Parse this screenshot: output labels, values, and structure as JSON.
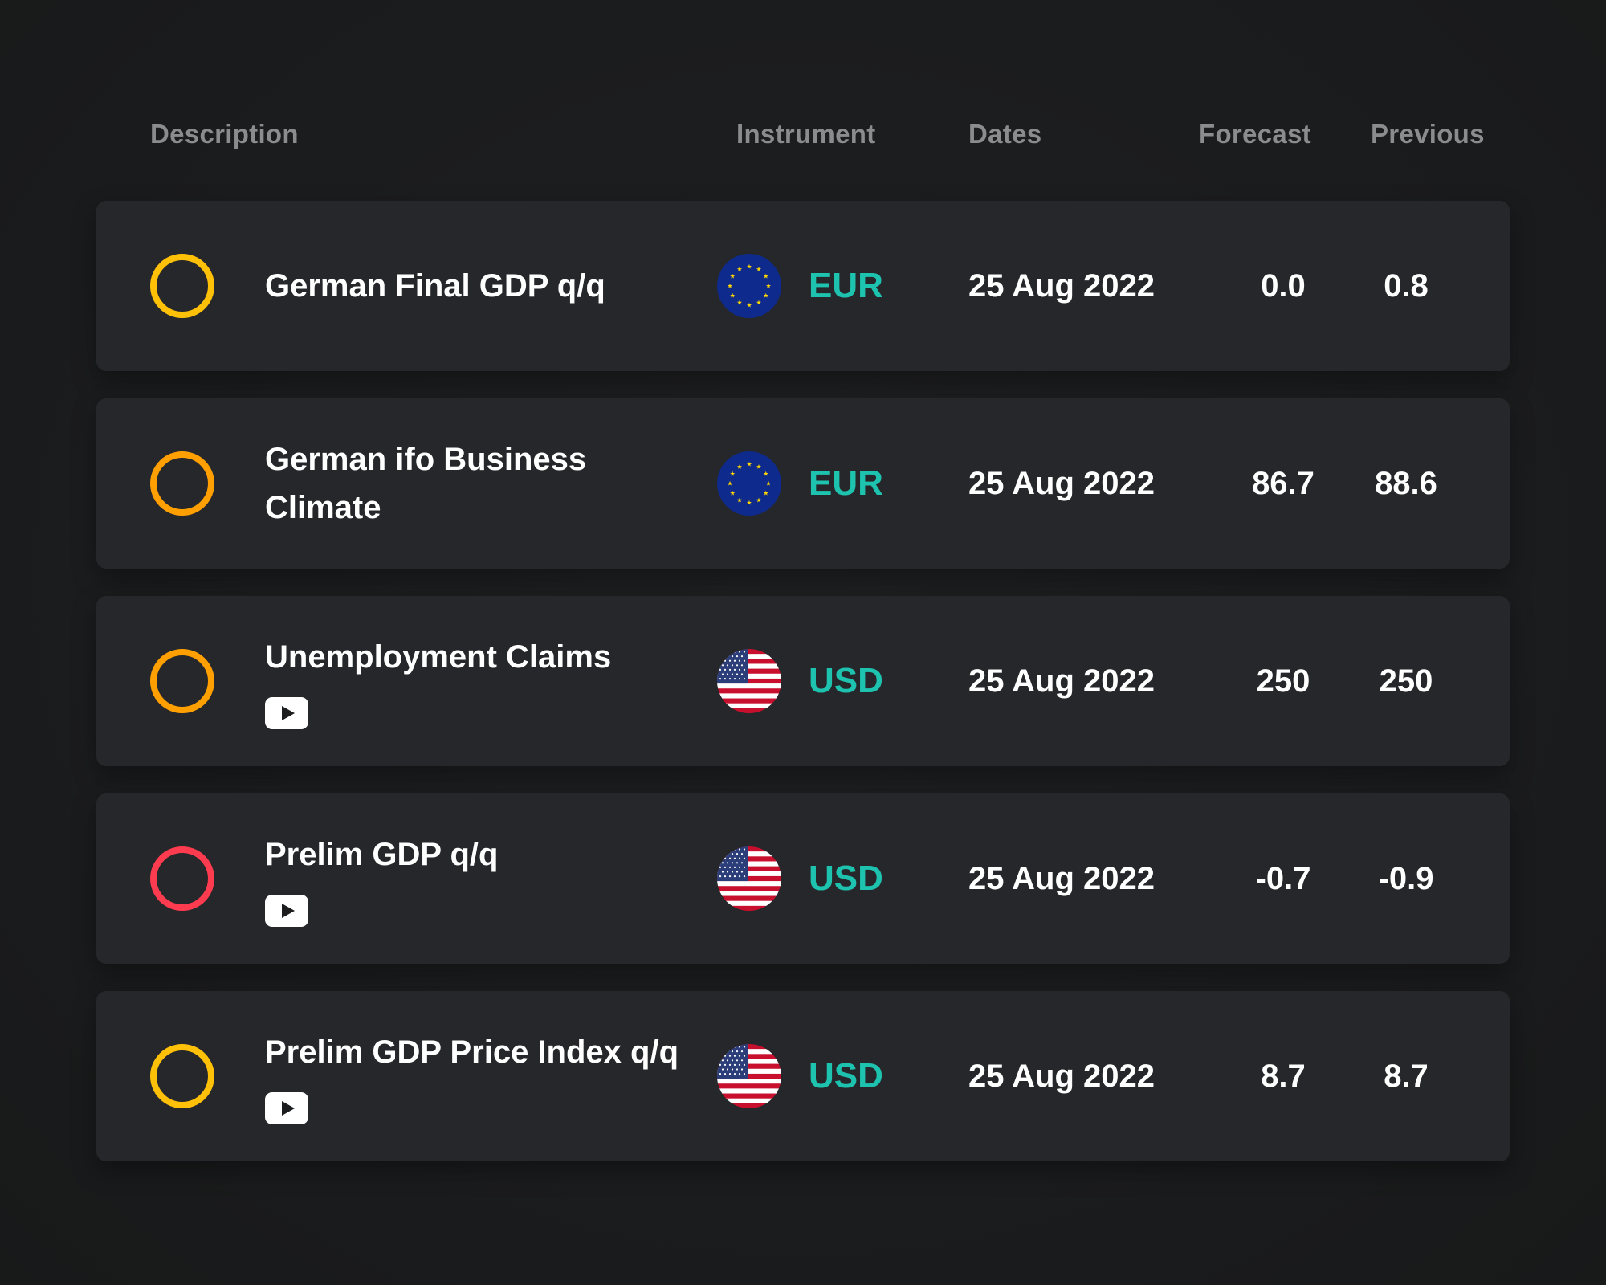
{
  "header": {
    "description": "Description",
    "instrument": "Instrument",
    "dates": "Dates",
    "forecast": "Forecast",
    "previous": "Previous"
  },
  "colors": {
    "ring_yellow": "#ffc107",
    "ring_orange": "#ffa000",
    "ring_red": "#ff3b4f",
    "currency": "#1ec3b0"
  },
  "rows": [
    {
      "impact": "yellow",
      "description_line1": "German Final GDP q/q",
      "description_line2": "",
      "has_video": false,
      "flag": "eu-flag",
      "currency": "EUR",
      "date": "25 Aug 2022",
      "forecast": "0.0",
      "previous": "0.8"
    },
    {
      "impact": "orange",
      "description_line1": "German ifo Business",
      "description_line2": "Climate",
      "has_video": false,
      "flag": "eu-flag",
      "currency": "EUR",
      "date": "25 Aug 2022",
      "forecast": "86.7",
      "previous": "88.6"
    },
    {
      "impact": "orange",
      "description_line1": "Unemployment Claims",
      "description_line2": "",
      "has_video": true,
      "flag": "us-flag",
      "currency": "USD",
      "date": "25 Aug 2022",
      "forecast": "250",
      "previous": "250"
    },
    {
      "impact": "red",
      "description_line1": "Prelim GDP q/q",
      "description_line2": "",
      "has_video": true,
      "flag": "us-flag",
      "currency": "USD",
      "date": "25 Aug 2022",
      "forecast": "-0.7",
      "previous": "-0.9"
    },
    {
      "impact": "yellow",
      "description_line1": "Prelim GDP Price Index q/q",
      "description_line2": "",
      "has_video": true,
      "flag": "us-flag",
      "currency": "USD",
      "date": "25 Aug 2022",
      "forecast": "8.7",
      "previous": "8.7"
    }
  ]
}
